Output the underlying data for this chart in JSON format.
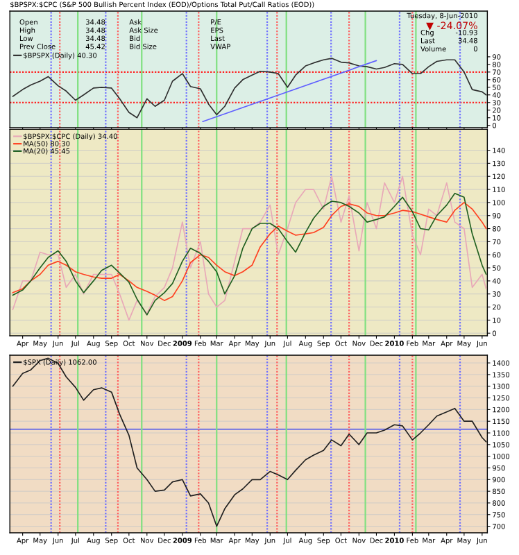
{
  "chart_data": [
    {
      "type": "line",
      "title": "$BPSPX:$CPC (S&P 500 Bullish Percent Index (EOD)/Options Total Put/Call Ratios (EOD))",
      "annotations": [
        "Open",
        "34.48",
        "High",
        "34.48",
        "Low",
        "34.48",
        "Prev Close",
        "45.42",
        "Ask",
        "Ask Size",
        "Bid",
        "Bid Size",
        "P/E",
        "EPS",
        "Last",
        "VWAP",
        "Tuesday, 8-Jun-2010",
        "▼ -24.07%",
        "Chg",
        "-10.93",
        "Last",
        "34.48",
        "Volume",
        "0"
      ],
      "x": [
        "2008-03-15",
        "2008-04-01",
        "2008-04-15",
        "2008-05-01",
        "2008-05-15",
        "2008-06-01",
        "2008-06-15",
        "2008-07-01",
        "2008-07-15",
        "2008-08-01",
        "2008-08-15",
        "2008-09-01",
        "2008-09-15",
        "2008-10-01",
        "2008-10-15",
        "2008-11-01",
        "2008-11-15",
        "2008-12-01",
        "2008-12-15",
        "2009-01-01",
        "2009-01-15",
        "2009-02-01",
        "2009-02-15",
        "2009-03-01",
        "2009-03-15",
        "2009-04-01",
        "2009-04-15",
        "2009-05-01",
        "2009-05-15",
        "2009-06-01",
        "2009-06-15",
        "2009-07-01",
        "2009-07-15",
        "2009-08-01",
        "2009-08-15",
        "2009-09-01",
        "2009-09-15",
        "2009-10-01",
        "2009-10-15",
        "2009-11-01",
        "2009-11-15",
        "2009-12-01",
        "2009-12-15",
        "2010-01-01",
        "2010-01-15",
        "2010-02-01",
        "2010-02-15",
        "2010-03-01",
        "2010-03-15",
        "2010-04-01",
        "2010-04-15",
        "2010-05-01",
        "2010-05-15",
        "2010-06-01",
        "2010-06-08"
      ],
      "series": [
        {
          "name": "$BPSPX (Daily) 40.30",
          "color": "#303030",
          "values": [
            38,
            47,
            53,
            58,
            64,
            52,
            45,
            33,
            40,
            49,
            50,
            49,
            35,
            17,
            10,
            35,
            25,
            33,
            58,
            68,
            51,
            48,
            28,
            14,
            25,
            49,
            60,
            66,
            71,
            70,
            68,
            50,
            66,
            78,
            82,
            86,
            88,
            83,
            82,
            78,
            77,
            74,
            76,
            81,
            80,
            68,
            68,
            77,
            84,
            86,
            86,
            70,
            47,
            44,
            40
          ]
        },
        {
          "color": "#6060ff",
          "x": [
            "2009-02-05",
            "2009-12-01"
          ],
          "values": [
            5,
            85
          ]
        }
      ],
      "xlim": [
        "2008-03-10",
        "2010-06-10"
      ],
      "ylim": [
        -3,
        150
      ],
      "yticks": [
        0,
        10,
        20,
        30,
        40,
        50,
        60,
        70,
        80,
        90
      ],
      "xticks": [
        {
          "value": "2008-04-01",
          "label": null
        },
        {
          "value": "2008-05-01",
          "label": null
        },
        {
          "value": "2008-06-01",
          "label": null
        },
        {
          "value": "2008-07-01",
          "label": null
        },
        {
          "value": "2008-08-01",
          "label": null
        },
        {
          "value": "2008-09-01",
          "label": null
        },
        {
          "value": "2008-10-01",
          "label": null
        },
        {
          "value": "2008-11-01",
          "label": null
        },
        {
          "value": "2008-12-01",
          "label": null
        },
        {
          "value": "2009-01-01",
          "label": null
        },
        {
          "value": "2009-02-01",
          "label": null
        },
        {
          "value": "2009-03-01",
          "label": null
        },
        {
          "value": "2009-04-01",
          "label": null
        },
        {
          "value": "2009-05-01",
          "label": null
        },
        {
          "value": "2009-06-01",
          "label": null
        },
        {
          "value": "2009-07-01",
          "label": null
        },
        {
          "value": "2009-08-01",
          "label": null
        },
        {
          "value": "2009-09-01",
          "label": null
        },
        {
          "value": "2009-10-01",
          "label": null
        },
        {
          "value": "2009-11-01",
          "label": null
        },
        {
          "value": "2009-12-01",
          "label": null
        },
        {
          "value": "2010-01-01",
          "label": null
        },
        {
          "value": "2010-02-01",
          "label": null
        },
        {
          "value": "2010-03-01",
          "label": null
        },
        {
          "value": "2010-04-01",
          "label": null
        },
        {
          "value": "2010-05-01",
          "label": null
        },
        {
          "value": "2010-06-01",
          "label": null
        }
      ],
      "ref_lines": [
        {
          "axis": "y",
          "value": 70,
          "color": "#ff2020",
          "line_style": "dotted"
        },
        {
          "axis": "y",
          "value": 30,
          "color": "#ff2020",
          "line_style": "dotted"
        },
        {
          "axis": "x",
          "value": "2008-05-20",
          "color": "#7070ff",
          "line_style": "dotted"
        },
        {
          "axis": "x",
          "value": "2008-08-22",
          "color": "#7070ff",
          "line_style": "dotted"
        },
        {
          "axis": "x",
          "value": "2009-01-08",
          "color": "#7070ff",
          "line_style": "dotted"
        },
        {
          "axis": "x",
          "value": "2009-05-27",
          "color": "#7070ff",
          "line_style": "dotted"
        },
        {
          "axis": "x",
          "value": "2009-09-14",
          "color": "#7070ff",
          "line_style": "dotted"
        },
        {
          "axis": "x",
          "value": "2010-01-10",
          "color": "#7070ff",
          "line_style": "dotted"
        },
        {
          "axis": "x",
          "value": "2010-04-24",
          "color": "#7070ff",
          "line_style": "dotted"
        },
        {
          "axis": "x",
          "value": "2008-06-04",
          "color": "#ff6060",
          "line_style": "dotted"
        },
        {
          "axis": "x",
          "value": "2008-09-12",
          "color": "#ff6060",
          "line_style": "dotted"
        },
        {
          "axis": "x",
          "value": "2009-01-29",
          "color": "#ff6060",
          "line_style": "dotted"
        },
        {
          "axis": "x",
          "value": "2009-06-13",
          "color": "#ff6060",
          "line_style": "dotted"
        },
        {
          "axis": "x",
          "value": "2009-10-15",
          "color": "#ff6060",
          "line_style": "dotted"
        },
        {
          "axis": "x",
          "value": "2010-02-01",
          "color": "#ff6060",
          "line_style": "dotted"
        },
        {
          "axis": "x",
          "value": "2008-07-05",
          "color": "#80e080",
          "line_style": "solid"
        },
        {
          "axis": "x",
          "value": "2008-10-23",
          "color": "#80e080",
          "line_style": "solid"
        },
        {
          "axis": "x",
          "value": "2009-03-01",
          "color": "#80e080",
          "line_style": "solid"
        },
        {
          "axis": "x",
          "value": "2009-06-29",
          "color": "#80e080",
          "line_style": "solid"
        },
        {
          "axis": "x",
          "value": "2009-11-12",
          "color": "#80e080",
          "line_style": "solid"
        },
        {
          "axis": "x",
          "value": "2010-02-07",
          "color": "#80e080",
          "line_style": "solid"
        }
      ],
      "legend": "top left",
      "tick_labels": "y"
    },
    {
      "type": "line",
      "x": [
        "2008-03-15",
        "2008-04-01",
        "2008-04-15",
        "2008-05-01",
        "2008-05-15",
        "2008-06-01",
        "2008-06-15",
        "2008-07-01",
        "2008-07-15",
        "2008-08-01",
        "2008-08-15",
        "2008-09-01",
        "2008-09-15",
        "2008-10-01",
        "2008-10-15",
        "2008-11-01",
        "2008-11-15",
        "2008-12-01",
        "2008-12-15",
        "2009-01-01",
        "2009-01-15",
        "2009-02-01",
        "2009-02-15",
        "2009-03-01",
        "2009-03-15",
        "2009-04-01",
        "2009-04-15",
        "2009-05-01",
        "2009-05-15",
        "2009-06-01",
        "2009-06-15",
        "2009-07-01",
        "2009-07-15",
        "2009-08-01",
        "2009-08-15",
        "2009-09-01",
        "2009-09-15",
        "2009-10-01",
        "2009-10-15",
        "2009-11-01",
        "2009-11-15",
        "2009-12-01",
        "2009-12-15",
        "2010-01-01",
        "2010-01-15",
        "2010-02-01",
        "2010-02-15",
        "2010-03-01",
        "2010-03-15",
        "2010-04-01",
        "2010-04-15",
        "2010-05-01",
        "2010-05-15",
        "2010-06-01",
        "2010-06-08"
      ],
      "series": [
        {
          "name": "$BPSPX:$CPC (Daily) 34.40",
          "color": "#e8a8b8",
          "values": [
            18,
            40,
            40,
            62,
            60,
            60,
            35,
            45,
            30,
            45,
            45,
            45,
            30,
            10,
            25,
            15,
            28,
            35,
            50,
            85,
            50,
            70,
            30,
            20,
            25,
            55,
            80,
            80,
            85,
            98,
            60,
            80,
            100,
            110,
            110,
            95,
            120,
            85,
            105,
            63,
            100,
            80,
            115,
            100,
            120,
            75,
            60,
            95,
            90,
            115,
            85,
            80,
            35,
            45,
            34
          ]
        },
        {
          "name": "MA(50) 80.30",
          "color": "#ff4020",
          "values": [
            31,
            34,
            40,
            45,
            52,
            55,
            52,
            47,
            45,
            43,
            42,
            42,
            45,
            40,
            35,
            32,
            29,
            25,
            28,
            40,
            54,
            60,
            58,
            52,
            47,
            44,
            47,
            52,
            66,
            76,
            82,
            78,
            75,
            76,
            77,
            81,
            90,
            97,
            99,
            97,
            92,
            90,
            90,
            92,
            94,
            93,
            91,
            89,
            87,
            85,
            94,
            100,
            95,
            85,
            80
          ]
        },
        {
          "name": "MA(20) 45.45",
          "color": "#206020",
          "values": [
            29,
            33,
            40,
            50,
            58,
            63,
            55,
            40,
            31,
            40,
            48,
            52,
            46,
            39,
            26,
            14,
            25,
            31,
            38,
            55,
            65,
            61,
            55,
            47,
            30,
            44,
            65,
            80,
            84,
            84,
            80,
            70,
            62,
            77,
            88,
            97,
            101,
            100,
            97,
            92,
            85,
            87,
            89,
            97,
            104,
            93,
            80,
            79,
            90,
            98,
            107,
            104,
            76,
            52,
            45
          ]
        }
      ],
      "xlim": [
        "2008-03-10",
        "2010-06-10"
      ],
      "ylim": [
        -2,
        156
      ],
      "yticks": [
        0,
        10,
        20,
        30,
        40,
        50,
        60,
        70,
        80,
        90,
        100,
        110,
        120,
        130,
        140
      ],
      "xticks": [
        {
          "value": "2008-04-01",
          "label": "Apr"
        },
        {
          "value": "2008-05-01",
          "label": "May"
        },
        {
          "value": "2008-06-01",
          "label": "Jun"
        },
        {
          "value": "2008-07-01",
          "label": "Jul"
        },
        {
          "value": "2008-08-01",
          "label": "Aug"
        },
        {
          "value": "2008-09-01",
          "label": "Sep"
        },
        {
          "value": "2008-10-01",
          "label": "Oct"
        },
        {
          "value": "2008-11-01",
          "label": "Nov"
        },
        {
          "value": "2008-12-01",
          "label": "Dec"
        },
        {
          "value": "2009-01-01",
          "label": "2009"
        },
        {
          "value": "2009-02-01",
          "label": "Feb"
        },
        {
          "value": "2009-03-01",
          "label": "Mar"
        },
        {
          "value": "2009-04-01",
          "label": "Apr"
        },
        {
          "value": "2009-05-01",
          "label": "May"
        },
        {
          "value": "2009-06-01",
          "label": "Jun"
        },
        {
          "value": "2009-07-01",
          "label": "Jul"
        },
        {
          "value": "2009-08-01",
          "label": "Aug"
        },
        {
          "value": "2009-09-01",
          "label": "Sep"
        },
        {
          "value": "2009-10-01",
          "label": "Oct"
        },
        {
          "value": "2009-11-01",
          "label": "Nov"
        },
        {
          "value": "2009-12-01",
          "label": "Dec"
        },
        {
          "value": "2010-01-01",
          "label": "2010"
        },
        {
          "value": "2010-02-01",
          "label": "Feb"
        },
        {
          "value": "2010-03-01",
          "label": "Mar"
        },
        {
          "value": "2010-04-01",
          "label": "Apr"
        },
        {
          "value": "2010-05-01",
          "label": "May"
        },
        {
          "value": "2010-06-01",
          "label": "Jun"
        }
      ],
      "ref_lines": [
        {
          "axis": "x",
          "value": "2008-05-20",
          "color": "#7070ff",
          "line_style": "dotted"
        },
        {
          "axis": "x",
          "value": "2008-08-22",
          "color": "#7070ff",
          "line_style": "dotted"
        },
        {
          "axis": "x",
          "value": "2009-01-08",
          "color": "#7070ff",
          "line_style": "dotted"
        },
        {
          "axis": "x",
          "value": "2009-05-27",
          "color": "#7070ff",
          "line_style": "dotted"
        },
        {
          "axis": "x",
          "value": "2009-09-14",
          "color": "#7070ff",
          "line_style": "dotted"
        },
        {
          "axis": "x",
          "value": "2010-01-10",
          "color": "#7070ff",
          "line_style": "dotted"
        },
        {
          "axis": "x",
          "value": "2010-04-24",
          "color": "#7070ff",
          "line_style": "dotted"
        },
        {
          "axis": "x",
          "value": "2008-06-04",
          "color": "#ff6060",
          "line_style": "dotted"
        },
        {
          "axis": "x",
          "value": "2008-09-12",
          "color": "#ff6060",
          "line_style": "dotted"
        },
        {
          "axis": "x",
          "value": "2009-01-29",
          "color": "#ff6060",
          "line_style": "dotted"
        },
        {
          "axis": "x",
          "value": "2009-06-13",
          "color": "#ff6060",
          "line_style": "dotted"
        },
        {
          "axis": "x",
          "value": "2009-10-15",
          "color": "#ff6060",
          "line_style": "dotted"
        },
        {
          "axis": "x",
          "value": "2010-02-01",
          "color": "#ff6060",
          "line_style": "dotted"
        },
        {
          "axis": "x",
          "value": "2008-07-05",
          "color": "#80e080",
          "line_style": "solid"
        },
        {
          "axis": "x",
          "value": "2008-10-23",
          "color": "#80e080",
          "line_style": "solid"
        },
        {
          "axis": "x",
          "value": "2009-03-01",
          "color": "#80e080",
          "line_style": "solid"
        },
        {
          "axis": "x",
          "value": "2009-06-29",
          "color": "#80e080",
          "line_style": "solid"
        },
        {
          "axis": "x",
          "value": "2009-11-12",
          "color": "#80e080",
          "line_style": "solid"
        },
        {
          "axis": "x",
          "value": "2010-02-07",
          "color": "#80e080",
          "line_style": "solid"
        }
      ],
      "grid": "y",
      "legend": "top left"
    },
    {
      "type": "line",
      "x": [
        "2008-03-15",
        "2008-04-01",
        "2008-04-15",
        "2008-05-01",
        "2008-05-15",
        "2008-06-01",
        "2008-06-15",
        "2008-07-01",
        "2008-07-15",
        "2008-08-01",
        "2008-08-15",
        "2008-09-01",
        "2008-09-15",
        "2008-10-01",
        "2008-10-15",
        "2008-11-01",
        "2008-11-15",
        "2008-12-01",
        "2008-12-15",
        "2009-01-01",
        "2009-01-15",
        "2009-02-01",
        "2009-02-15",
        "2009-03-01",
        "2009-03-15",
        "2009-04-01",
        "2009-04-15",
        "2009-05-01",
        "2009-05-15",
        "2009-06-01",
        "2009-06-15",
        "2009-07-01",
        "2009-07-15",
        "2009-08-01",
        "2009-08-15",
        "2009-09-01",
        "2009-09-15",
        "2009-10-01",
        "2009-10-15",
        "2009-11-01",
        "2009-11-15",
        "2009-12-01",
        "2009-12-15",
        "2010-01-01",
        "2010-01-15",
        "2010-02-01",
        "2010-02-15",
        "2010-03-01",
        "2010-03-15",
        "2010-04-01",
        "2010-04-15",
        "2010-05-01",
        "2010-05-15",
        "2010-06-01",
        "2010-06-08"
      ],
      "series": [
        {
          "name": "$SPX (Daily) 1062.00",
          "color": "#202020",
          "values": [
            1300,
            1355,
            1370,
            1410,
            1420,
            1398,
            1340,
            1295,
            1240,
            1285,
            1293,
            1275,
            1180,
            1090,
            950,
            900,
            850,
            855,
            890,
            900,
            830,
            839,
            800,
            700,
            775,
            835,
            860,
            900,
            900,
            935,
            920,
            900,
            940,
            985,
            1005,
            1025,
            1070,
            1045,
            1095,
            1050,
            1100,
            1100,
            1112,
            1135,
            1130,
            1070,
            1100,
            1135,
            1172,
            1190,
            1205,
            1150,
            1150,
            1080,
            1062
          ]
        }
      ],
      "xlim": [
        "2008-03-10",
        "2010-06-10"
      ],
      "ylim": [
        672,
        1433
      ],
      "yticks": [
        700,
        750,
        800,
        850,
        900,
        950,
        1000,
        1050,
        1100,
        1150,
        1200,
        1250,
        1300,
        1350,
        1400
      ],
      "xticks": [
        {
          "value": "2008-04-01",
          "label": "Apr"
        },
        {
          "value": "2008-05-01",
          "label": "May"
        },
        {
          "value": "2008-06-01",
          "label": "Jun"
        },
        {
          "value": "2008-07-01",
          "label": "Jul"
        },
        {
          "value": "2008-08-01",
          "label": "Aug"
        },
        {
          "value": "2008-09-01",
          "label": "Sep"
        },
        {
          "value": "2008-10-01",
          "label": "Oct"
        },
        {
          "value": "2008-11-01",
          "label": "Nov"
        },
        {
          "value": "2008-12-01",
          "label": "Dec"
        },
        {
          "value": "2009-01-01",
          "label": "2009"
        },
        {
          "value": "2009-02-01",
          "label": "Feb"
        },
        {
          "value": "2009-03-01",
          "label": "Mar"
        },
        {
          "value": "2009-04-01",
          "label": "Apr"
        },
        {
          "value": "2009-05-01",
          "label": "May"
        },
        {
          "value": "2009-06-01",
          "label": "Jun"
        },
        {
          "value": "2009-07-01",
          "label": "Jul"
        },
        {
          "value": "2009-08-01",
          "label": "Aug"
        },
        {
          "value": "2009-09-01",
          "label": "Sep"
        },
        {
          "value": "2009-10-01",
          "label": "Oct"
        },
        {
          "value": "2009-11-01",
          "label": "Nov"
        },
        {
          "value": "2009-12-01",
          "label": "Dec"
        },
        {
          "value": "2010-01-01",
          "label": "2010"
        },
        {
          "value": "2010-02-01",
          "label": "Feb"
        },
        {
          "value": "2010-03-01",
          "label": "Mar"
        },
        {
          "value": "2010-04-01",
          "label": "Apr"
        },
        {
          "value": "2010-05-01",
          "label": "May"
        },
        {
          "value": "2010-06-01",
          "label": "Jun"
        }
      ],
      "ref_lines": [
        {
          "axis": "y",
          "value": 1115,
          "color": "#8080e0",
          "line_style": "solid"
        },
        {
          "axis": "x",
          "value": "2008-05-20",
          "color": "#7070ff",
          "line_style": "dotted"
        },
        {
          "axis": "x",
          "value": "2008-08-22",
          "color": "#7070ff",
          "line_style": "dotted"
        },
        {
          "axis": "x",
          "value": "2009-01-08",
          "color": "#7070ff",
          "line_style": "dotted"
        },
        {
          "axis": "x",
          "value": "2009-05-27",
          "color": "#7070ff",
          "line_style": "dotted"
        },
        {
          "axis": "x",
          "value": "2009-09-14",
          "color": "#7070ff",
          "line_style": "dotted"
        },
        {
          "axis": "x",
          "value": "2010-01-10",
          "color": "#7070ff",
          "line_style": "dotted"
        },
        {
          "axis": "x",
          "value": "2010-04-24",
          "color": "#7070ff",
          "line_style": "dotted"
        },
        {
          "axis": "x",
          "value": "2008-06-04",
          "color": "#ff6060",
          "line_style": "dotted"
        },
        {
          "axis": "x",
          "value": "2008-09-12",
          "color": "#ff6060",
          "line_style": "dotted"
        },
        {
          "axis": "x",
          "value": "2009-01-29",
          "color": "#ff6060",
          "line_style": "dotted"
        },
        {
          "axis": "x",
          "value": "2009-06-13",
          "color": "#ff6060",
          "line_style": "dotted"
        },
        {
          "axis": "x",
          "value": "2009-10-15",
          "color": "#ff6060",
          "line_style": "dotted"
        },
        {
          "axis": "x",
          "value": "2010-02-01",
          "color": "#ff6060",
          "line_style": "dotted"
        },
        {
          "axis": "x",
          "value": "2008-07-05",
          "color": "#80e080",
          "line_style": "solid"
        },
        {
          "axis": "x",
          "value": "2008-10-23",
          "color": "#80e080",
          "line_style": "solid"
        },
        {
          "axis": "x",
          "value": "2009-03-01",
          "color": "#80e080",
          "line_style": "solid"
        },
        {
          "axis": "x",
          "value": "2009-06-29",
          "color": "#80e080",
          "line_style": "solid"
        },
        {
          "axis": "x",
          "value": "2009-11-12",
          "color": "#80e080",
          "line_style": "solid"
        },
        {
          "axis": "x",
          "value": "2010-02-07",
          "color": "#80e080",
          "line_style": "solid"
        }
      ],
      "grid": "y",
      "legend": "top left"
    }
  ]
}
